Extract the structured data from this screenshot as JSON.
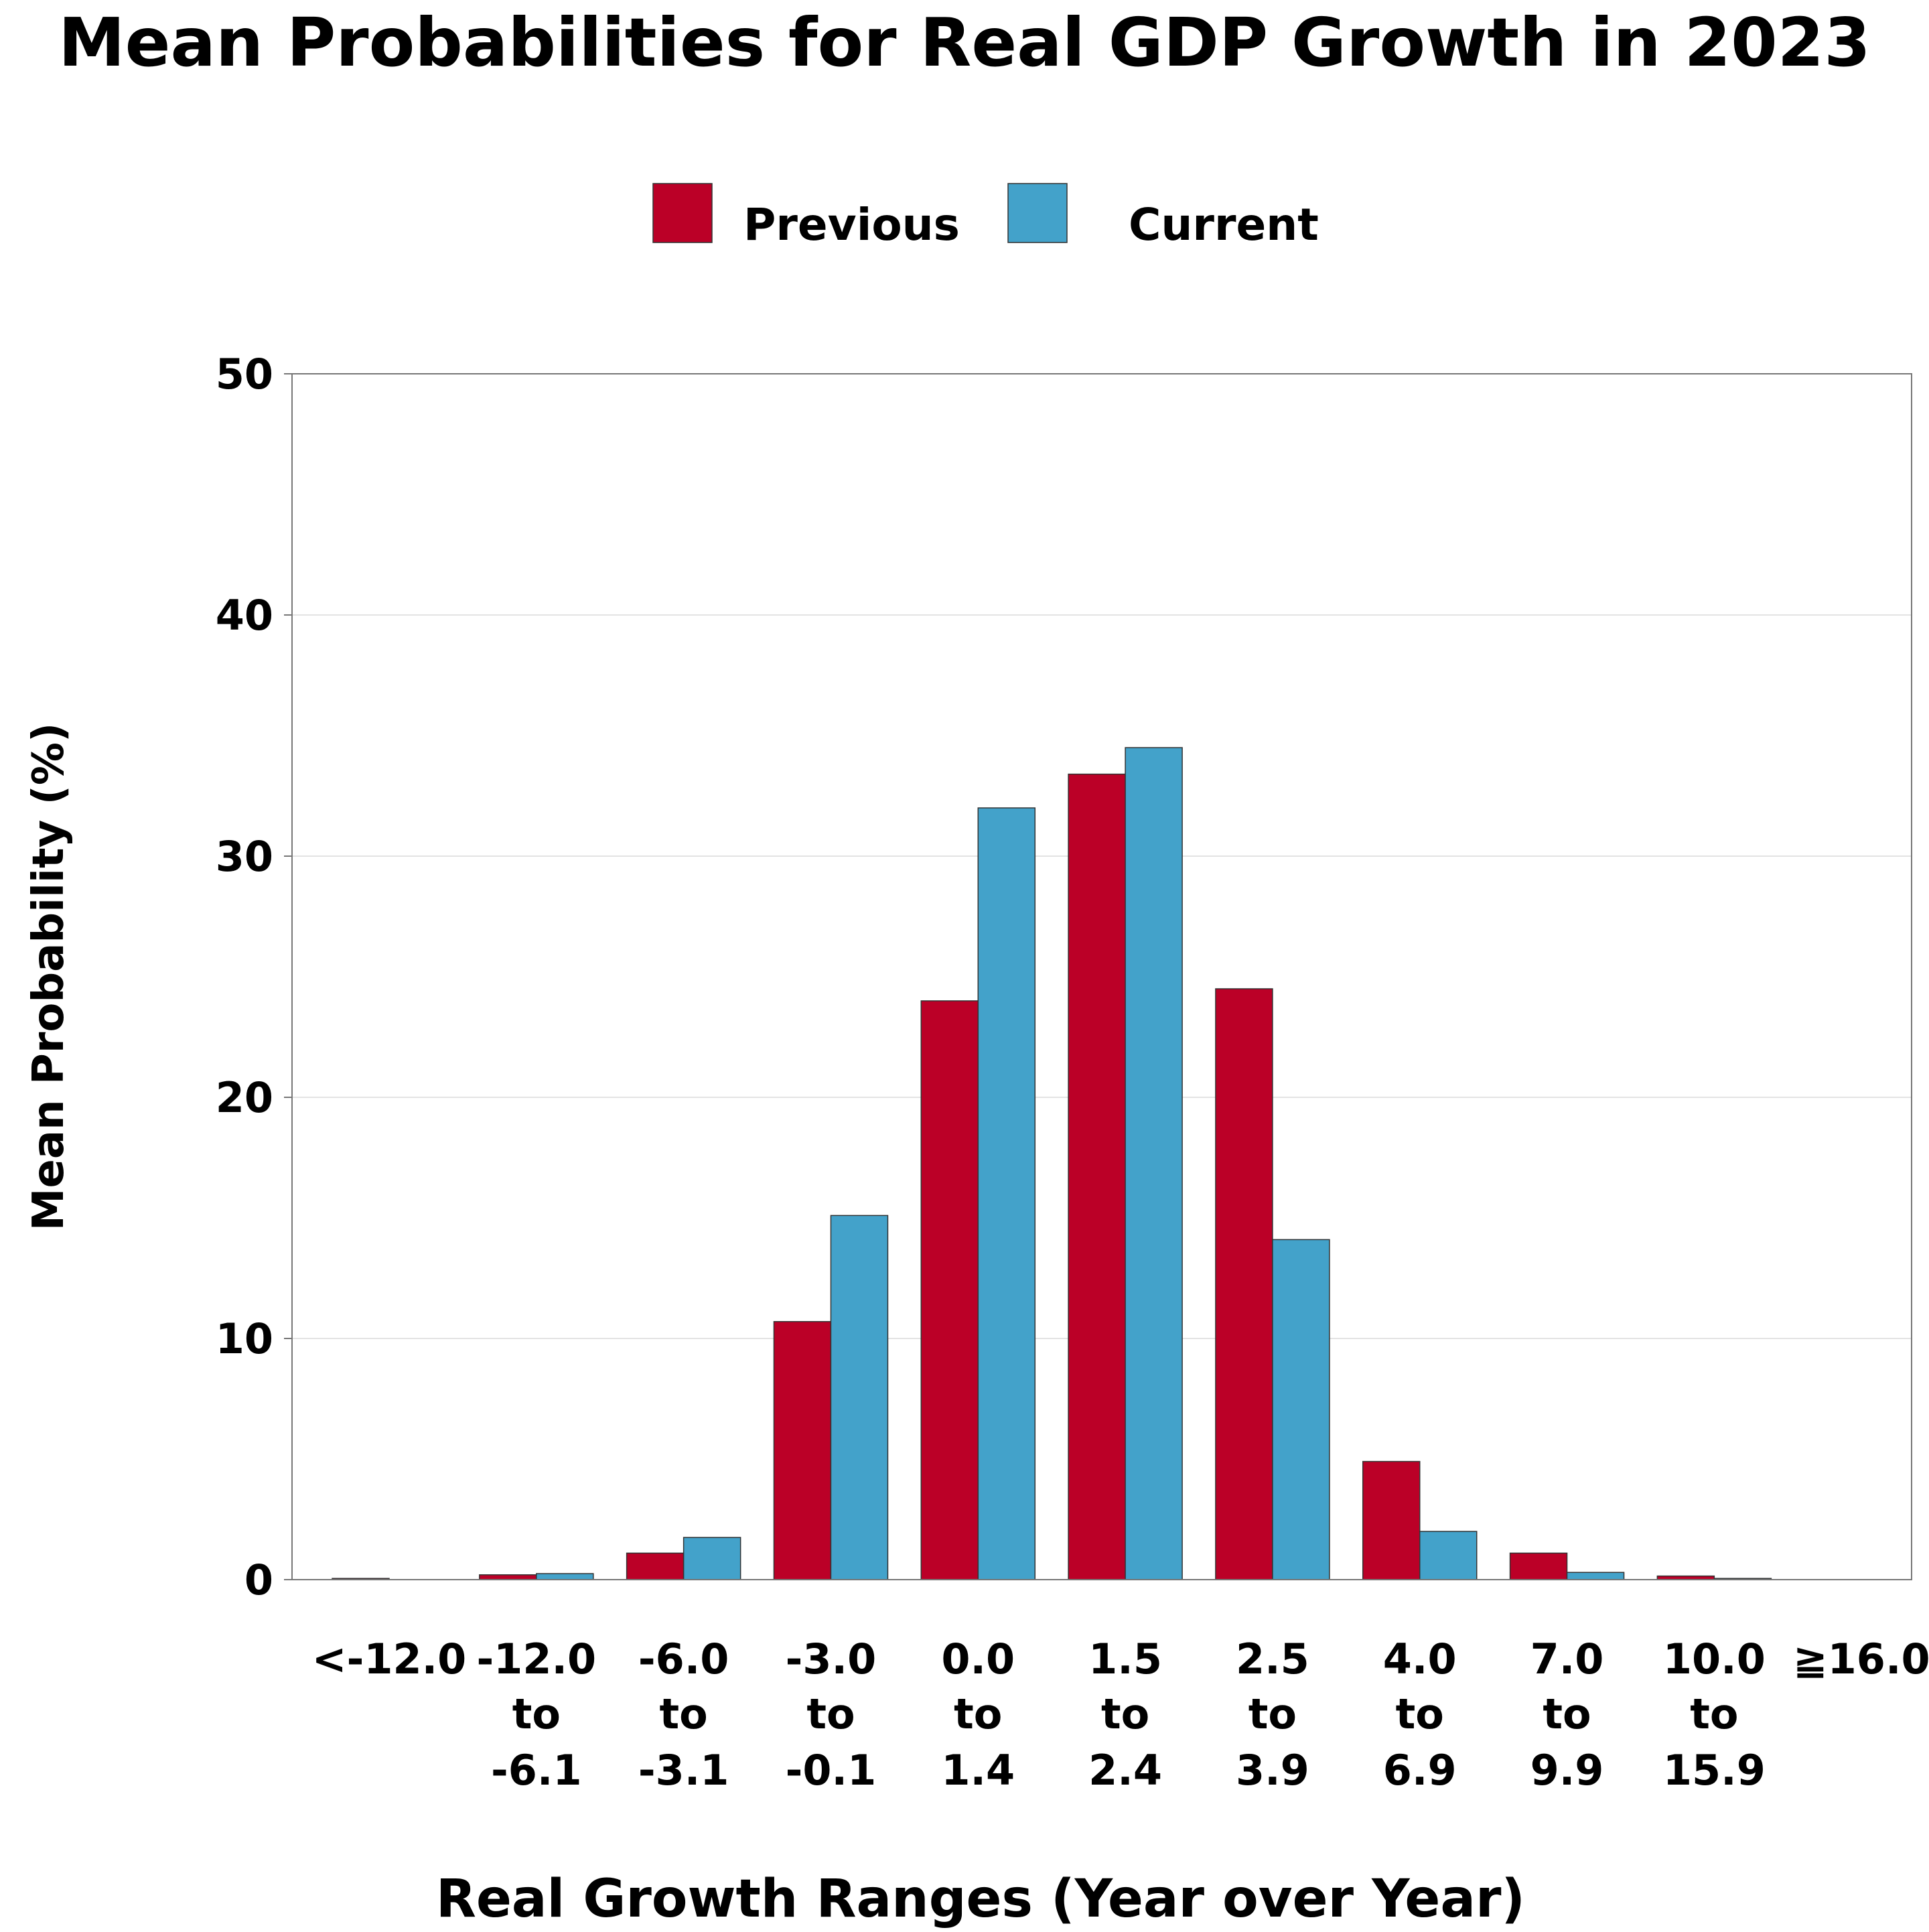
{
  "chart_data": {
    "type": "bar",
    "title": "Mean Probabilities for Real GDP Growth in 2023",
    "xlabel": "Real Growth Ranges (Year over Year)",
    "ylabel": "Mean Probability (%)",
    "ylim": [
      0,
      50
    ],
    "yticks": [
      "0",
      "10",
      "20",
      "30",
      "40",
      "50"
    ],
    "grid": true,
    "legend_position": "top-center",
    "categories": [
      "<-12.0",
      "-12.0 to -6.1",
      "-6.0 to -3.1",
      "-3.0 to -0.1",
      "0.0 to 1.4",
      "1.5 to 2.4",
      "2.5 to 3.9",
      "4.0 to 6.9",
      "7.0 to 9.9",
      "10.0 to 15.9",
      "≧16.0"
    ],
    "category_label_lines": [
      [
        "<-12.0"
      ],
      [
        "-12.0",
        "to",
        "-6.1"
      ],
      [
        "-6.0",
        "to",
        "-3.1"
      ],
      [
        "-3.0",
        "to",
        "-0.1"
      ],
      [
        "0.0",
        "to",
        "1.4"
      ],
      [
        "1.5",
        "to",
        "2.4"
      ],
      [
        "2.5",
        "to",
        "3.9"
      ],
      [
        "4.0",
        "to",
        "6.9"
      ],
      [
        "7.0",
        "to",
        "9.9"
      ],
      [
        "10.0",
        "to",
        "15.9"
      ],
      [
        "≧16.0"
      ]
    ],
    "series": [
      {
        "name": "Previous",
        "color": "#BB0027",
        "values": [
          0.05,
          0.2,
          1.1,
          10.7,
          24.0,
          33.4,
          24.5,
          4.9,
          1.1,
          0.15,
          0.0
        ]
      },
      {
        "name": "Current",
        "color": "#43A2CA",
        "values": [
          0.0,
          0.25,
          1.75,
          15.1,
          32.0,
          34.5,
          14.1,
          2.0,
          0.3,
          0.05,
          0.0
        ]
      }
    ]
  }
}
